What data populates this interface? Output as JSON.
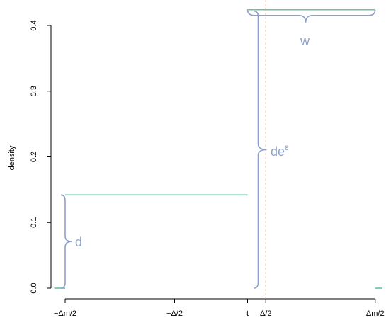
{
  "chart_data": {
    "type": "line",
    "ylabel": "density",
    "ylim": [
      0,
      0.4
    ],
    "yticks": [
      0.0,
      0.1,
      0.2,
      0.3,
      0.4
    ],
    "ytick_labels": [
      "0.0",
      "0.1",
      "0.2",
      "0.3",
      "0.4"
    ],
    "x_positions": {
      "neg_dm2": 0,
      "neg_d2": 3,
      "t": 5,
      "d2": 5.5,
      "dm2": 8.5
    },
    "xtick_labels": [
      {
        "key": "neg_dm2",
        "label": "−Δm/2"
      },
      {
        "key": "neg_d2",
        "label": "−Δ/2"
      },
      {
        "key": "t",
        "label": "t"
      },
      {
        "key": "d2",
        "label": "Δ/2"
      },
      {
        "key": "dm2",
        "label": "Δm/2"
      }
    ],
    "density_segments": [
      {
        "x": [
          0,
          5
        ],
        "y": 0.142
      },
      {
        "x": [
          5,
          8.5
        ],
        "y": 0.424
      },
      {
        "x": [
          8.5,
          8.7
        ],
        "y": 0.0
      }
    ],
    "left_zero_segment": {
      "x": [
        -0.3,
        0
      ],
      "y": 0.0
    },
    "vline_x": 5.5,
    "braces": [
      {
        "name": "d",
        "label": "d"
      },
      {
        "name": "de",
        "label": "de",
        "superscript": "ε"
      },
      {
        "name": "w",
        "label": "w"
      }
    ],
    "colors": {
      "density": "#66c2a5",
      "brace": "#8da0cb",
      "vline": "#fc8d62",
      "axis": "#000000"
    }
  }
}
